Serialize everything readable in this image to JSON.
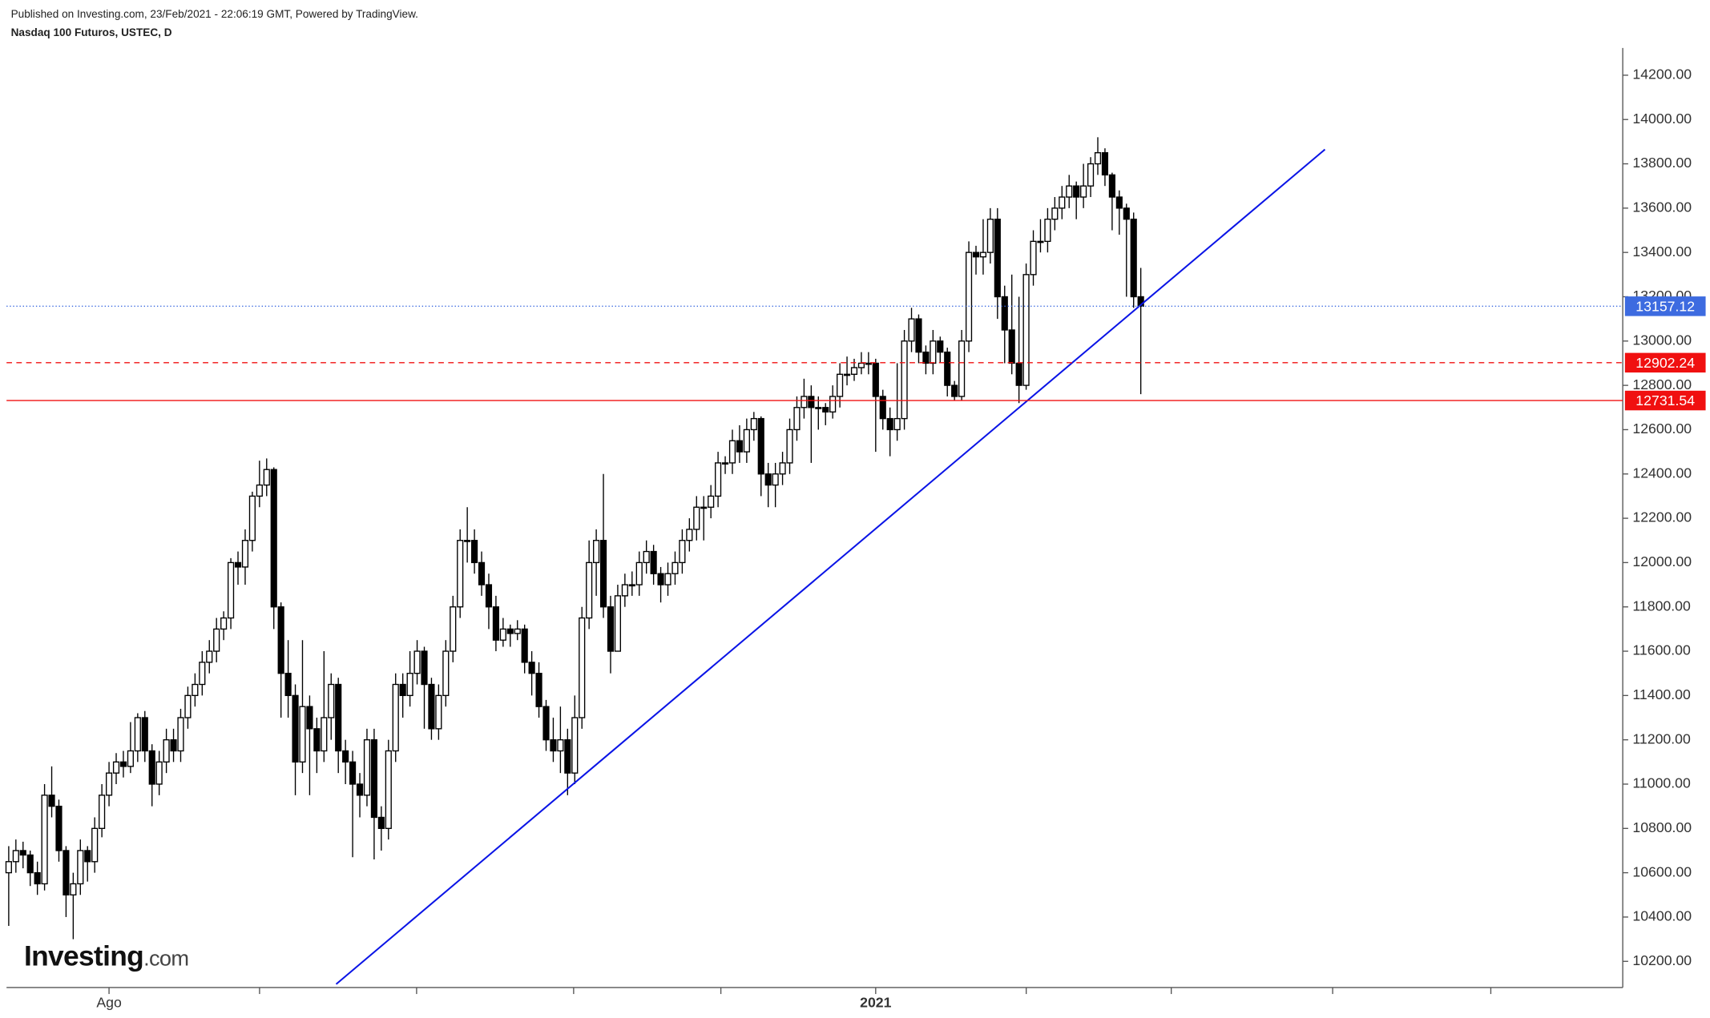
{
  "chart_data": {
    "type": "candlestick",
    "subtitle": "Published on Investing.com, 23/Feb/2021 - 22:06:19 GMT, Powered by TradingView.",
    "title": "Nasdaq 100 Futuros, USTEC, D",
    "logo": [
      "Investing",
      ".com"
    ],
    "up_color": "#ffffff",
    "down_color": "#000000",
    "wick_color": "#000000",
    "last_color": "#3d6be0",
    "categories": [
      null,
      null,
      null,
      null,
      null,
      null,
      null,
      null,
      null,
      null,
      null,
      null,
      null,
      null,
      "Ago",
      null,
      null,
      null,
      null,
      null,
      null,
      null,
      null,
      null,
      null,
      null,
      null,
      null,
      null,
      null,
      null,
      null,
      null,
      null,
      null,
      null,
      null,
      null,
      null,
      null,
      null,
      null,
      null,
      null,
      null,
      null,
      null,
      null,
      null,
      null,
      null,
      null,
      null,
      null,
      null,
      null,
      null,
      null,
      null,
      null,
      null,
      null,
      null,
      null,
      null,
      null,
      null,
      null,
      null,
      null,
      null,
      null,
      null,
      null,
      null,
      null,
      null,
      null,
      null,
      null,
      null,
      null,
      null,
      null,
      null,
      null,
      null,
      null,
      null,
      null,
      null,
      null,
      null,
      null,
      null,
      null,
      null,
      null,
      null,
      null,
      null,
      null,
      null,
      null,
      null,
      null,
      null,
      null,
      null,
      null,
      null,
      null,
      null,
      null,
      null,
      null,
      null,
      null,
      null,
      null,
      null,
      "2021",
      null,
      null,
      null,
      null,
      null,
      null,
      null,
      null,
      null,
      null,
      null,
      null,
      null,
      null,
      null,
      null,
      null,
      null,
      null,
      null,
      null,
      null,
      null,
      null,
      null,
      null,
      null,
      null,
      null,
      null,
      null,
      null,
      null,
      null,
      null,
      null,
      null
    ],
    "open": [
      10600,
      10650,
      10700,
      10680,
      10600,
      10550,
      10950,
      10900,
      10700,
      10500,
      10550,
      10700,
      10650,
      10800,
      10950,
      11050,
      11100,
      11080,
      11150,
      11300,
      11150,
      11000,
      11100,
      11200,
      11150,
      11300,
      11400,
      11450,
      11550,
      11600,
      11700,
      11750,
      12000,
      11980,
      12100,
      12300,
      12350,
      12420,
      11800,
      11500,
      11400,
      11100,
      11350,
      11250,
      11150,
      11300,
      11450,
      11150,
      11100,
      11000,
      10950,
      11200,
      10850,
      10800,
      11150,
      11450,
      11400,
      11500,
      11600,
      11450,
      11250,
      11400,
      11600,
      11800,
      12100,
      12100,
      12000,
      11900,
      11800,
      11650,
      11700,
      11680,
      11700,
      11550,
      11500,
      11350,
      11200,
      11150,
      11200,
      11050,
      11300,
      11750,
      12000,
      12100,
      11800,
      11600,
      11850,
      11900,
      11900,
      12000,
      12050,
      11950,
      11900,
      11950,
      12000,
      12100,
      12150,
      12250,
      12250,
      12300,
      12450,
      12450,
      12550,
      12500,
      12600,
      12650,
      12400,
      12350,
      12400,
      12450,
      12600,
      12700,
      12750,
      12700,
      12700,
      12680,
      12750,
      12850,
      12850,
      12880,
      12900,
      12900,
      12750,
      12650,
      12600,
      12650,
      13000,
      13100,
      12950,
      12900,
      13000,
      12950,
      12800,
      12750,
      13000,
      13400,
      13380,
      13400,
      13550,
      13200,
      13050,
      12900,
      12800,
      13300,
      13450,
      13450,
      13550,
      13600,
      13650,
      13700,
      13650,
      13700,
      13800,
      13850,
      13750,
      13650,
      13600,
      13550,
      13200
    ],
    "high": [
      10720,
      10750,
      10740,
      10700,
      10650,
      11000,
      11080,
      10930,
      10720,
      10600,
      10750,
      10720,
      10850,
      11000,
      11100,
      11140,
      11150,
      11280,
      11320,
      11330,
      11180,
      11150,
      11250,
      11250,
      11340,
      11440,
      11500,
      11600,
      11650,
      11750,
      11780,
      12020,
      12050,
      12150,
      12320,
      12460,
      12470,
      12430,
      11820,
      11650,
      11450,
      11650,
      11400,
      11300,
      11600,
      11500,
      11480,
      11200,
      11150,
      11050,
      11250,
      11250,
      10900,
      11200,
      11500,
      11500,
      11600,
      11650,
      11620,
      11480,
      11450,
      11650,
      11850,
      12150,
      12250,
      12150,
      12050,
      11950,
      11850,
      11750,
      11720,
      11740,
      11720,
      11600,
      11550,
      11380,
      11300,
      11350,
      11250,
      11400,
      11800,
      12100,
      12150,
      12400,
      11850,
      11900,
      11950,
      11960,
      12050,
      12100,
      12080,
      11980,
      12000,
      12050,
      12150,
      12200,
      12300,
      12300,
      12350,
      12500,
      12480,
      12600,
      12620,
      12650,
      12680,
      12660,
      12450,
      12450,
      12500,
      12650,
      12750,
      12830,
      12800,
      12750,
      12720,
      12800,
      12900,
      12930,
      12920,
      12950,
      12950,
      12920,
      12780,
      12700,
      12900,
      13050,
      13150,
      13120,
      12980,
      13050,
      13020,
      12970,
      12820,
      13050,
      13450,
      13430,
      13550,
      13600,
      13600,
      13250,
      13300,
      13200,
      13350,
      13500,
      13550,
      13600,
      13650,
      13700,
      13750,
      13720,
      13800,
      13830,
      13920,
      13870,
      13760,
      13680,
      13620,
      13580,
      13330
    ],
    "low": [
      10360,
      10600,
      10620,
      10540,
      10500,
      10520,
      10850,
      10650,
      10400,
      10300,
      10500,
      10560,
      10600,
      10760,
      10900,
      11000,
      11030,
      11050,
      11100,
      11100,
      10900,
      10950,
      11050,
      11100,
      11100,
      11250,
      11350,
      11400,
      11500,
      11550,
      11650,
      11700,
      11900,
      11900,
      12050,
      12250,
      12300,
      11700,
      11300,
      11300,
      10950,
      11050,
      10950,
      11050,
      11100,
      11200,
      11050,
      11000,
      10670,
      10850,
      10900,
      10660,
      10700,
      10750,
      11100,
      11300,
      11350,
      11450,
      11250,
      11200,
      11200,
      11350,
      11550,
      11750,
      12000,
      11950,
      11850,
      11700,
      11600,
      11620,
      11620,
      11650,
      11500,
      11400,
      11300,
      11150,
      11100,
      11050,
      10950,
      11000,
      11250,
      11700,
      11850,
      11750,
      11500,
      11600,
      11800,
      11850,
      11850,
      11950,
      11900,
      11820,
      11850,
      11900,
      11950,
      12050,
      12100,
      12100,
      12200,
      12250,
      12400,
      12400,
      12450,
      12450,
      12550,
      12300,
      12250,
      12250,
      12350,
      12400,
      12550,
      12650,
      12450,
      12600,
      12620,
      12650,
      12700,
      12800,
      12820,
      12850,
      12850,
      12500,
      12600,
      12480,
      12550,
      12600,
      12950,
      12900,
      12850,
      12850,
      12900,
      12750,
      12730,
      12730,
      12950,
      13300,
      13300,
      13350,
      13100,
      12900,
      12850,
      12720,
      12780,
      13250,
      13400,
      13400,
      13500,
      13550,
      13600,
      13550,
      13600,
      13650,
      13750,
      13700,
      13500,
      13480,
      13200,
      13150,
      12760
    ],
    "close": [
      10650,
      10700,
      10680,
      10600,
      10550,
      10950,
      10900,
      10700,
      10500,
      10550,
      10700,
      10650,
      10800,
      10950,
      11050,
      11100,
      11080,
      11150,
      11300,
      11150,
      11000,
      11100,
      11200,
      11150,
      11300,
      11400,
      11450,
      11550,
      11600,
      11700,
      11750,
      12000,
      11980,
      12100,
      12300,
      12350,
      12420,
      11800,
      11500,
      11400,
      11100,
      11350,
      11250,
      11150,
      11300,
      11450,
      11150,
      11100,
      11000,
      10950,
      11200,
      10850,
      10800,
      11150,
      11450,
      11400,
      11500,
      11600,
      11450,
      11250,
      11400,
      11600,
      11800,
      12100,
      12100,
      12000,
      11900,
      11800,
      11650,
      11700,
      11680,
      11700,
      11550,
      11500,
      11350,
      11200,
      11150,
      11200,
      11050,
      11300,
      11750,
      12000,
      12100,
      11800,
      11600,
      11850,
      11900,
      11900,
      12000,
      12050,
      11950,
      11900,
      11950,
      12000,
      12100,
      12150,
      12250,
      12250,
      12300,
      12450,
      12450,
      12550,
      12500,
      12600,
      12650,
      12400,
      12350,
      12400,
      12450,
      12600,
      12700,
      12750,
      12700,
      12700,
      12680,
      12750,
      12850,
      12850,
      12880,
      12900,
      12900,
      12750,
      12650,
      12600,
      12650,
      13000,
      13100,
      12950,
      12900,
      13000,
      12950,
      12800,
      12750,
      13000,
      13400,
      13380,
      13400,
      13550,
      13200,
      13050,
      12900,
      12800,
      13300,
      13450,
      13450,
      13550,
      13600,
      13650,
      13700,
      13650,
      13700,
      13800,
      13850,
      13750,
      13650,
      13600,
      13550,
      13200,
      13157.12
    ],
    "levels": [
      {
        "value": 12902.24,
        "color": "#f01010",
        "style": "dashed"
      },
      {
        "value": 12731.54,
        "color": "#f01010",
        "style": "solid"
      }
    ],
    "trendline": {
      "x": [
        45.7,
        183.7
      ],
      "y": [
        10097,
        13865
      ],
      "color": "#0a14e6"
    },
    "ylim": [
      10082,
      14323
    ],
    "yticks": [
      {
        "value": 10200,
        "label": "10200.00"
      },
      {
        "value": 10400,
        "label": "10400.00"
      },
      {
        "value": 10600,
        "label": "10600.00"
      },
      {
        "value": 10800,
        "label": "10800.00"
      },
      {
        "value": 11000,
        "label": "11000.00"
      },
      {
        "value": 11200,
        "label": "11200.00"
      },
      {
        "value": 11400,
        "label": "11400.00"
      },
      {
        "value": 11600,
        "label": "11600.00"
      },
      {
        "value": 11800,
        "label": "11800.00"
      },
      {
        "value": 12000,
        "label": "12000.00"
      },
      {
        "value": 12200,
        "label": "12200.00"
      },
      {
        "value": 12400,
        "label": "12400.00"
      },
      {
        "value": 12600,
        "label": "12600.00"
      },
      {
        "value": 12800,
        "label": "12800.00"
      },
      {
        "value": 13000,
        "label": "13000.00"
      },
      {
        "value": 13200,
        "label": "13200.00"
      },
      {
        "value": 13400,
        "label": "13400.00"
      },
      {
        "value": 13600,
        "label": "13600.00"
      },
      {
        "value": 13800,
        "label": "13800.00"
      },
      {
        "value": 14000,
        "label": "14000.00"
      },
      {
        "value": 14200,
        "label": "14200.00"
      }
    ]
  }
}
